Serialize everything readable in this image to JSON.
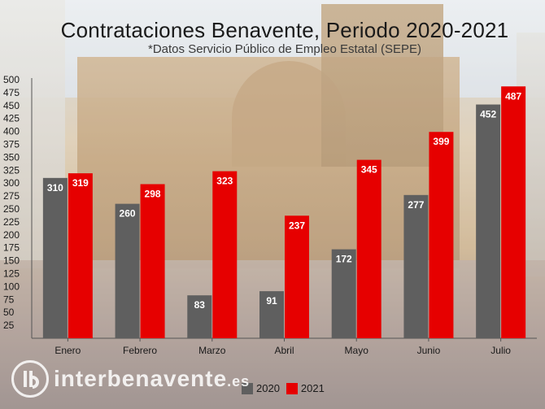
{
  "header": {
    "title": "Contrataciones Benavente, Periodo 2020-2021",
    "subtitle": "*Datos Servicio Público de Empleo Estatal (SEPE)"
  },
  "legend": {
    "items": [
      {
        "label": "2020",
        "color": "#5f5f5f"
      },
      {
        "label": "2021",
        "color": "#e60000"
      }
    ]
  },
  "logo": {
    "name": "interbenavente",
    "tld": ".es",
    "icon": "ib-logo-icon"
  },
  "chart_data": {
    "type": "bar",
    "title": "Contrataciones Benavente, Periodo 2020-2021",
    "subtitle": "*Datos Servicio Público de Empleo Estatal (SEPE)",
    "categories": [
      "Enero",
      "Febrero",
      "Marzo",
      "Abril",
      "Mayo",
      "Junio",
      "Julio"
    ],
    "series": [
      {
        "name": "2020",
        "color": "#5f5f5f",
        "values": [
          310,
          260,
          83,
          91,
          172,
          277,
          452
        ]
      },
      {
        "name": "2021",
        "color": "#e60000",
        "values": [
          319,
          298,
          323,
          237,
          345,
          399,
          487
        ]
      }
    ],
    "ylim": [
      0,
      500
    ],
    "yticks": [
      25,
      50,
      75,
      100,
      125,
      150,
      175,
      200,
      225,
      250,
      275,
      300,
      325,
      350,
      375,
      400,
      425,
      450,
      475,
      500
    ],
    "legend_position": "bottom-center",
    "grid": false
  }
}
